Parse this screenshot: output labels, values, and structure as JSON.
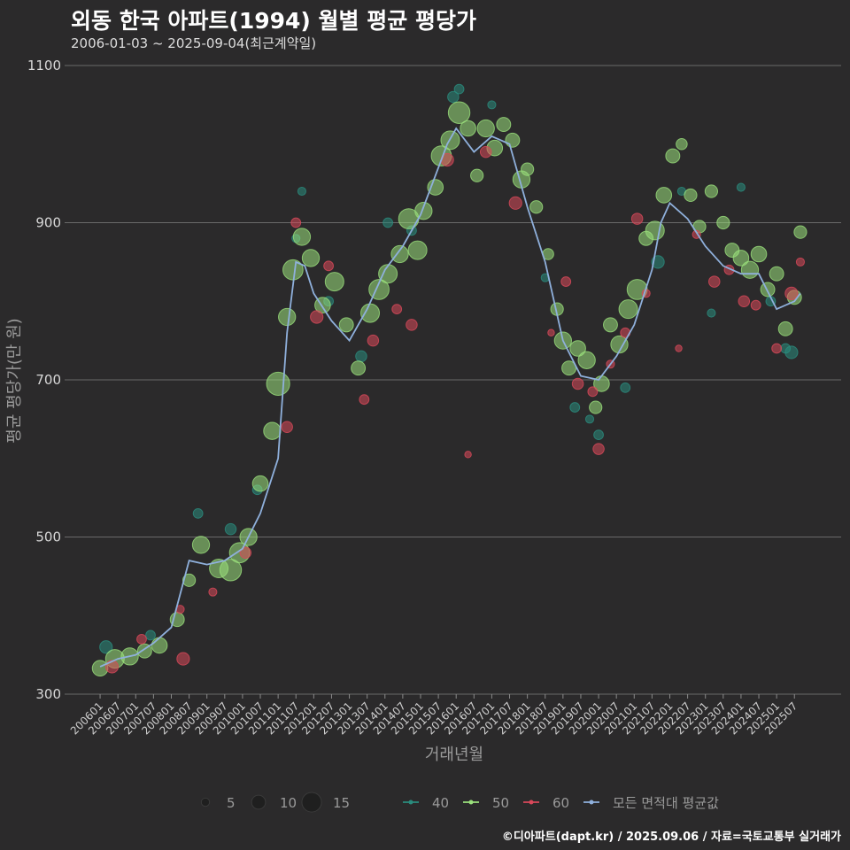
{
  "title": "외동 한국 아파트(1994) 월별 평균 평당가",
  "subtitle": "2006-01-03 ~ 2025-09-04(최근계약일)",
  "credit": "©디아파트(dapt.kr) / 2025.09.06 / 자료=국토교통부 실거래가",
  "chart_data": {
    "type": "scatter",
    "xlabel": "거래년월",
    "ylabel": "평균 평당가(만 원)",
    "ylim": [
      300,
      1100
    ],
    "yticks": [
      300,
      500,
      700,
      900,
      1100
    ],
    "xlim": [
      "2005-10",
      "2025-12"
    ],
    "xticks": [
      "200601",
      "200607",
      "200701",
      "200707",
      "200801",
      "200807",
      "200901",
      "200907",
      "201001",
      "201007",
      "201101",
      "201107",
      "201201",
      "201207",
      "201301",
      "201307",
      "201401",
      "201407",
      "201501",
      "201507",
      "201601",
      "201607",
      "201701",
      "201707",
      "201801",
      "201807",
      "201901",
      "201907",
      "202001",
      "202007",
      "202101",
      "202107",
      "202201",
      "202207",
      "202301",
      "202307",
      "202401",
      "202407",
      "202501",
      "202507"
    ],
    "size_legend": {
      "title": "",
      "values": [
        5,
        10,
        15
      ]
    },
    "series_colors": {
      "40": "#2a8c7e",
      "50": "#9ae07c",
      "60": "#d9485a",
      "avg": "#8fb0dc"
    },
    "legend": [
      {
        "key": "40",
        "label": "40",
        "color": "#2a8c7e"
      },
      {
        "key": "50",
        "label": "50",
        "color": "#9ae07c"
      },
      {
        "key": "60",
        "label": "60",
        "color": "#d9485a"
      },
      {
        "key": "avg",
        "label": "모든 면적대 평균값",
        "color": "#8fb0dc"
      }
    ],
    "average_line": {
      "name": "모든 면적대 평균값",
      "x": [
        "2006-01",
        "2006-07",
        "2007-01",
        "2007-07",
        "2008-01",
        "2008-07",
        "2009-01",
        "2009-07",
        "2010-01",
        "2010-07",
        "2011-01",
        "2011-04",
        "2011-07",
        "2011-10",
        "2012-01",
        "2012-07",
        "2013-01",
        "2013-07",
        "2014-01",
        "2014-07",
        "2015-01",
        "2015-07",
        "2015-10",
        "2016-01",
        "2016-07",
        "2017-01",
        "2017-04",
        "2017-07",
        "2018-01",
        "2018-07",
        "2019-01",
        "2019-07",
        "2020-01",
        "2020-07",
        "2021-01",
        "2021-07",
        "2021-10",
        "2022-01",
        "2022-07",
        "2023-01",
        "2023-07",
        "2024-01",
        "2024-07",
        "2025-01",
        "2025-07",
        "2025-09"
      ],
      "y": [
        335,
        345,
        350,
        365,
        385,
        470,
        465,
        470,
        485,
        530,
        600,
        760,
        850,
        845,
        810,
        775,
        750,
        790,
        840,
        870,
        910,
        970,
        1000,
        1020,
        990,
        1010,
        1005,
        1000,
        920,
        850,
        750,
        705,
        700,
        730,
        770,
        840,
        900,
        925,
        905,
        870,
        845,
        835,
        835,
        790,
        800,
        810
      ]
    },
    "series": [
      {
        "name": "40",
        "points": [
          {
            "x": "2006-03",
            "y": 360,
            "size": 6
          },
          {
            "x": "2007-06",
            "y": 375,
            "size": 4
          },
          {
            "x": "2008-10",
            "y": 530,
            "size": 4
          },
          {
            "x": "2009-09",
            "y": 510,
            "size": 5
          },
          {
            "x": "2010-06",
            "y": 560,
            "size": 4
          },
          {
            "x": "2011-07",
            "y": 880,
            "size": 3
          },
          {
            "x": "2011-09",
            "y": 940,
            "size": 3
          },
          {
            "x": "2012-06",
            "y": 800,
            "size": 4
          },
          {
            "x": "2013-05",
            "y": 730,
            "size": 5
          },
          {
            "x": "2014-02",
            "y": 900,
            "size": 4
          },
          {
            "x": "2014-10",
            "y": 890,
            "size": 4
          },
          {
            "x": "2015-12",
            "y": 1060,
            "size": 5
          },
          {
            "x": "2016-02",
            "y": 1070,
            "size": 4
          },
          {
            "x": "2017-01",
            "y": 1050,
            "size": 3
          },
          {
            "x": "2018-07",
            "y": 830,
            "size": 3
          },
          {
            "x": "2019-05",
            "y": 665,
            "size": 4
          },
          {
            "x": "2019-10",
            "y": 650,
            "size": 3
          },
          {
            "x": "2020-01",
            "y": 630,
            "size": 4
          },
          {
            "x": "2020-10",
            "y": 690,
            "size": 4
          },
          {
            "x": "2021-09",
            "y": 850,
            "size": 6
          },
          {
            "x": "2022-05",
            "y": 940,
            "size": 3
          },
          {
            "x": "2023-03",
            "y": 785,
            "size": 3
          },
          {
            "x": "2024-01",
            "y": 945,
            "size": 3
          },
          {
            "x": "2024-11",
            "y": 800,
            "size": 4
          },
          {
            "x": "2025-04",
            "y": 740,
            "size": 4
          },
          {
            "x": "2025-06",
            "y": 735,
            "size": 6
          }
        ]
      },
      {
        "name": "50",
        "points": [
          {
            "x": "2006-01",
            "y": 333,
            "size": 8
          },
          {
            "x": "2006-06",
            "y": 345,
            "size": 10
          },
          {
            "x": "2006-11",
            "y": 348,
            "size": 9
          },
          {
            "x": "2007-04",
            "y": 355,
            "size": 7
          },
          {
            "x": "2007-09",
            "y": 362,
            "size": 8
          },
          {
            "x": "2008-03",
            "y": 395,
            "size": 7
          },
          {
            "x": "2008-07",
            "y": 445,
            "size": 6
          },
          {
            "x": "2008-11",
            "y": 490,
            "size": 9
          },
          {
            "x": "2009-05",
            "y": 460,
            "size": 10
          },
          {
            "x": "2009-09",
            "y": 458,
            "size": 12
          },
          {
            "x": "2009-12",
            "y": 480,
            "size": 11
          },
          {
            "x": "2010-03",
            "y": 500,
            "size": 9
          },
          {
            "x": "2010-07",
            "y": 568,
            "size": 8
          },
          {
            "x": "2010-11",
            "y": 635,
            "size": 9
          },
          {
            "x": "2011-01",
            "y": 695,
            "size": 13
          },
          {
            "x": "2011-04",
            "y": 780,
            "size": 9
          },
          {
            "x": "2011-06",
            "y": 840,
            "size": 11
          },
          {
            "x": "2011-09",
            "y": 882,
            "size": 9
          },
          {
            "x": "2011-12",
            "y": 855,
            "size": 9
          },
          {
            "x": "2012-04",
            "y": 795,
            "size": 8
          },
          {
            "x": "2012-08",
            "y": 825,
            "size": 10
          },
          {
            "x": "2012-12",
            "y": 770,
            "size": 7
          },
          {
            "x": "2013-04",
            "y": 715,
            "size": 7
          },
          {
            "x": "2013-08",
            "y": 785,
            "size": 10
          },
          {
            "x": "2013-11",
            "y": 815,
            "size": 11
          },
          {
            "x": "2014-02",
            "y": 835,
            "size": 10
          },
          {
            "x": "2014-06",
            "y": 860,
            "size": 9
          },
          {
            "x": "2014-09",
            "y": 905,
            "size": 11
          },
          {
            "x": "2014-12",
            "y": 865,
            "size": 10
          },
          {
            "x": "2015-02",
            "y": 915,
            "size": 9
          },
          {
            "x": "2015-06",
            "y": 945,
            "size": 8
          },
          {
            "x": "2015-08",
            "y": 985,
            "size": 11
          },
          {
            "x": "2015-11",
            "y": 1005,
            "size": 10
          },
          {
            "x": "2016-02",
            "y": 1040,
            "size": 12
          },
          {
            "x": "2016-05",
            "y": 1020,
            "size": 8
          },
          {
            "x": "2016-08",
            "y": 960,
            "size": 6
          },
          {
            "x": "2016-11",
            "y": 1020,
            "size": 9
          },
          {
            "x": "2017-02",
            "y": 995,
            "size": 8
          },
          {
            "x": "2017-05",
            "y": 1025,
            "size": 7
          },
          {
            "x": "2017-08",
            "y": 1005,
            "size": 7
          },
          {
            "x": "2017-11",
            "y": 955,
            "size": 9
          },
          {
            "x": "2018-01",
            "y": 968,
            "size": 6
          },
          {
            "x": "2018-04",
            "y": 920,
            "size": 6
          },
          {
            "x": "2018-08",
            "y": 860,
            "size": 5
          },
          {
            "x": "2018-11",
            "y": 790,
            "size": 6
          },
          {
            "x": "2019-01",
            "y": 750,
            "size": 9
          },
          {
            "x": "2019-03",
            "y": 715,
            "size": 7
          },
          {
            "x": "2019-06",
            "y": 740,
            "size": 8
          },
          {
            "x": "2019-09",
            "y": 725,
            "size": 9
          },
          {
            "x": "2019-12",
            "y": 665,
            "size": 6
          },
          {
            "x": "2020-02",
            "y": 695,
            "size": 8
          },
          {
            "x": "2020-05",
            "y": 770,
            "size": 7
          },
          {
            "x": "2020-08",
            "y": 745,
            "size": 9
          },
          {
            "x": "2020-11",
            "y": 790,
            "size": 10
          },
          {
            "x": "2021-02",
            "y": 815,
            "size": 11
          },
          {
            "x": "2021-05",
            "y": 880,
            "size": 7
          },
          {
            "x": "2021-08",
            "y": 890,
            "size": 10
          },
          {
            "x": "2021-11",
            "y": 935,
            "size": 8
          },
          {
            "x": "2022-02",
            "y": 985,
            "size": 7
          },
          {
            "x": "2022-05",
            "y": 1000,
            "size": 5
          },
          {
            "x": "2022-08",
            "y": 935,
            "size": 6
          },
          {
            "x": "2022-11",
            "y": 895,
            "size": 6
          },
          {
            "x": "2023-03",
            "y": 940,
            "size": 6
          },
          {
            "x": "2023-07",
            "y": 900,
            "size": 6
          },
          {
            "x": "2023-10",
            "y": 865,
            "size": 7
          },
          {
            "x": "2024-01",
            "y": 855,
            "size": 8
          },
          {
            "x": "2024-04",
            "y": 840,
            "size": 9
          },
          {
            "x": "2024-07",
            "y": 860,
            "size": 8
          },
          {
            "x": "2024-10",
            "y": 815,
            "size": 7
          },
          {
            "x": "2025-01",
            "y": 835,
            "size": 7
          },
          {
            "x": "2025-04",
            "y": 765,
            "size": 7
          },
          {
            "x": "2025-07",
            "y": 805,
            "size": 7
          },
          {
            "x": "2025-09",
            "y": 888,
            "size": 6
          }
        ]
      },
      {
        "name": "60",
        "points": [
          {
            "x": "2006-05",
            "y": 335,
            "size": 6
          },
          {
            "x": "2007-03",
            "y": 370,
            "size": 4
          },
          {
            "x": "2008-04",
            "y": 408,
            "size": 3
          },
          {
            "x": "2008-05",
            "y": 345,
            "size": 6
          },
          {
            "x": "2009-03",
            "y": 430,
            "size": 3
          },
          {
            "x": "2010-02",
            "y": 480,
            "size": 5
          },
          {
            "x": "2011-04",
            "y": 640,
            "size": 5
          },
          {
            "x": "2011-07",
            "y": 900,
            "size": 4
          },
          {
            "x": "2012-02",
            "y": 780,
            "size": 6
          },
          {
            "x": "2012-06",
            "y": 845,
            "size": 4
          },
          {
            "x": "2013-06",
            "y": 675,
            "size": 4
          },
          {
            "x": "2013-09",
            "y": 750,
            "size": 5
          },
          {
            "x": "2014-05",
            "y": 790,
            "size": 4
          },
          {
            "x": "2014-10",
            "y": 770,
            "size": 5
          },
          {
            "x": "2015-10",
            "y": 980,
            "size": 6
          },
          {
            "x": "2016-05",
            "y": 605,
            "size": 2
          },
          {
            "x": "2016-11",
            "y": 990,
            "size": 5
          },
          {
            "x": "2017-09",
            "y": 925,
            "size": 6
          },
          {
            "x": "2018-09",
            "y": 760,
            "size": 2
          },
          {
            "x": "2019-02",
            "y": 825,
            "size": 4
          },
          {
            "x": "2019-06",
            "y": 695,
            "size": 5
          },
          {
            "x": "2019-11",
            "y": 685,
            "size": 4
          },
          {
            "x": "2020-01",
            "y": 612,
            "size": 5
          },
          {
            "x": "2020-05",
            "y": 720,
            "size": 3
          },
          {
            "x": "2020-10",
            "y": 760,
            "size": 4
          },
          {
            "x": "2021-02",
            "y": 905,
            "size": 5
          },
          {
            "x": "2021-05",
            "y": 810,
            "size": 3
          },
          {
            "x": "2022-04",
            "y": 740,
            "size": 2
          },
          {
            "x": "2022-10",
            "y": 885,
            "size": 3
          },
          {
            "x": "2023-04",
            "y": 825,
            "size": 5
          },
          {
            "x": "2023-09",
            "y": 840,
            "size": 4
          },
          {
            "x": "2024-02",
            "y": 800,
            "size": 5
          },
          {
            "x": "2024-06",
            "y": 795,
            "size": 4
          },
          {
            "x": "2025-01",
            "y": 740,
            "size": 4
          },
          {
            "x": "2025-06",
            "y": 810,
            "size": 6
          },
          {
            "x": "2025-09",
            "y": 850,
            "size": 3
          }
        ]
      }
    ]
  }
}
